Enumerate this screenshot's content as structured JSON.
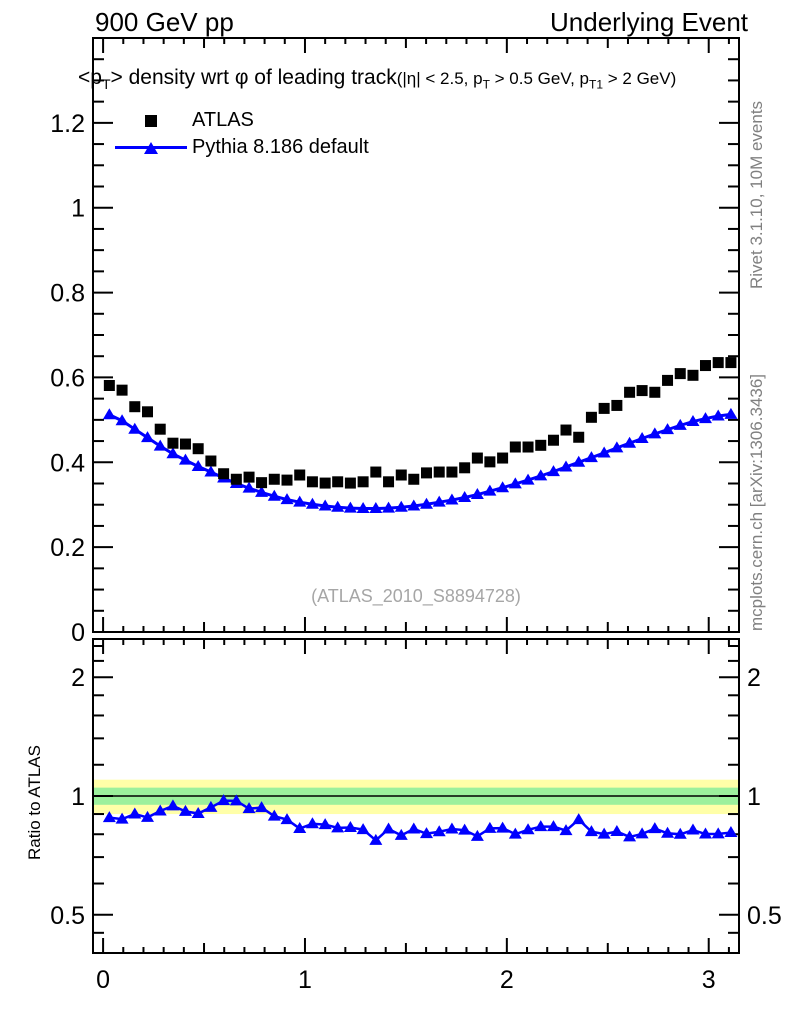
{
  "header": {
    "left": "900 GeV pp",
    "right": "Underlying Event"
  },
  "title": {
    "pre": "<p",
    "sub_t": "T",
    "mid": "> density wrt ",
    "phi": "φ",
    "post": " of leading track",
    "cut_pre": "(|η| < 2.5, p",
    "cut_sub1": "T",
    "cut_mid": " > 0.5 GeV, p",
    "cut_sub2": "T1",
    "cut_post": " > 2 GeV)"
  },
  "legend": {
    "items": [
      {
        "label": "ATLAS",
        "marker": "filled-square",
        "color": "#000000"
      },
      {
        "label": "Pythia 8.186 default",
        "marker": "triangle-on-line",
        "color": "#0000ff"
      }
    ]
  },
  "watermark": "(ATLAS_2010_S8894728)",
  "side_texts": {
    "top": "Rivet 3.1.10,  10M events",
    "bottom": "mcplots.cern.ch [arXiv:1306.3436]"
  },
  "chart_data": {
    "type": "scatter",
    "title": "<pT> density wrt φ of leading track (|η| < 2.5, pT > 0.5 GeV, pT1 > 2 GeV)",
    "xlabel": "",
    "ylabel": "",
    "x_range": [
      -0.05,
      3.15
    ],
    "x_ticks": [
      0,
      1,
      2,
      3
    ],
    "x_tick_labels": [
      "0",
      "1",
      "2",
      "3"
    ],
    "x": [
      0.031,
      0.094,
      0.157,
      0.22,
      0.283,
      0.346,
      0.408,
      0.471,
      0.534,
      0.597,
      0.66,
      0.723,
      0.785,
      0.848,
      0.911,
      0.974,
      1.037,
      1.1,
      1.162,
      1.225,
      1.288,
      1.351,
      1.414,
      1.477,
      1.539,
      1.602,
      1.665,
      1.728,
      1.791,
      1.854,
      1.916,
      1.979,
      2.042,
      2.105,
      2.168,
      2.231,
      2.293,
      2.356,
      2.419,
      2.482,
      2.545,
      2.608,
      2.67,
      2.733,
      2.796,
      2.859,
      2.922,
      2.984,
      3.047,
      3.11
    ],
    "series": [
      {
        "name": "ATLAS",
        "marker": "square",
        "color": "#000000",
        "values": [
          0.581,
          0.57,
          0.531,
          0.519,
          0.478,
          0.445,
          0.443,
          0.432,
          0.403,
          0.373,
          0.36,
          0.365,
          0.352,
          0.36,
          0.358,
          0.37,
          0.354,
          0.351,
          0.354,
          0.351,
          0.354,
          0.377,
          0.354,
          0.37,
          0.36,
          0.375,
          0.377,
          0.377,
          0.387,
          0.41,
          0.401,
          0.41,
          0.436,
          0.436,
          0.44,
          0.452,
          0.476,
          0.459,
          0.506,
          0.527,
          0.534,
          0.565,
          0.569,
          0.565,
          0.593,
          0.609,
          0.605,
          0.628,
          0.635,
          0.635
        ]
      },
      {
        "name": "Pythia 8.186 default",
        "marker": "triangle-line",
        "color": "#0000ff",
        "values": [
          0.512,
          0.498,
          0.478,
          0.458,
          0.438,
          0.42,
          0.405,
          0.39,
          0.377,
          0.363,
          0.35,
          0.339,
          0.329,
          0.32,
          0.312,
          0.306,
          0.301,
          0.297,
          0.294,
          0.292,
          0.291,
          0.291,
          0.292,
          0.294,
          0.297,
          0.301,
          0.306,
          0.311,
          0.317,
          0.324,
          0.332,
          0.34,
          0.349,
          0.358,
          0.368,
          0.378,
          0.389,
          0.4,
          0.411,
          0.422,
          0.434,
          0.445,
          0.456,
          0.467,
          0.477,
          0.487,
          0.496,
          0.503,
          0.509,
          0.513
        ]
      }
    ],
    "main": {
      "y_range": [
        0,
        1.4
      ],
      "y_ticks": [
        0,
        0.2,
        0.4,
        0.6,
        0.8,
        1,
        1.2
      ],
      "y_tick_labels": [
        "0",
        "0.2",
        "0.4",
        "0.6",
        "0.8",
        "1",
        "1.2"
      ]
    },
    "ratio": {
      "label": "Ratio to ATLAS",
      "definition": "Pythia / ATLAS",
      "scale": "log",
      "y_range": [
        0.4,
        2.5
      ],
      "y_ticks": [
        0.5,
        1,
        2
      ],
      "y_tick_labels": [
        "0.5",
        "1",
        "2"
      ],
      "y_minor_ticks": [
        0.45,
        0.6,
        0.7,
        0.8,
        0.9,
        1.2,
        1.4,
        1.6,
        1.8,
        2.2,
        2.4
      ],
      "reference_line": 1,
      "bands": {
        "green": [
          0.95,
          1.05
        ],
        "green_color": "#9cf09c",
        "yellow": [
          0.9,
          1.1
        ],
        "yellow_color": "#ffffa8"
      }
    }
  }
}
